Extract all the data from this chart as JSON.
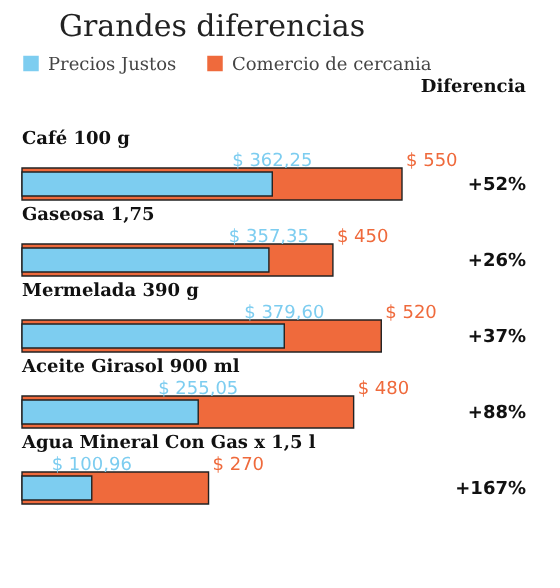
{
  "chart_data": {
    "type": "bar",
    "orientation": "horizontal",
    "title": "Grandes diferencias",
    "categories": [
      "Café 100 g",
      "Gaseosa 1,75",
      "Mermelada 390 g",
      "Aceite Girasol 900 ml",
      "Agua Mineral Con Gas  x 1,5 l"
    ],
    "series": [
      {
        "name": "Precios Justos",
        "color": "#7dcdf0",
        "values": [
          362.25,
          357.35,
          379.6,
          255.05,
          100.96
        ],
        "value_labels": [
          "$ 362,25",
          "$ 357,35",
          "$ 379,60",
          "$ 255,05",
          "$ 100,96"
        ]
      },
      {
        "name": "Comercio de cercania",
        "color": "#ef6a3c",
        "values": [
          550,
          450,
          520,
          480,
          270
        ],
        "value_labels": [
          "$ 550",
          "$ 450",
          "$ 520",
          "$ 480",
          "$ 270"
        ]
      }
    ],
    "annotations": [
      "Diferencia",
      "+52%",
      "+26%",
      "+37%",
      "+88%",
      "+167%"
    ],
    "legend": "top"
  }
}
